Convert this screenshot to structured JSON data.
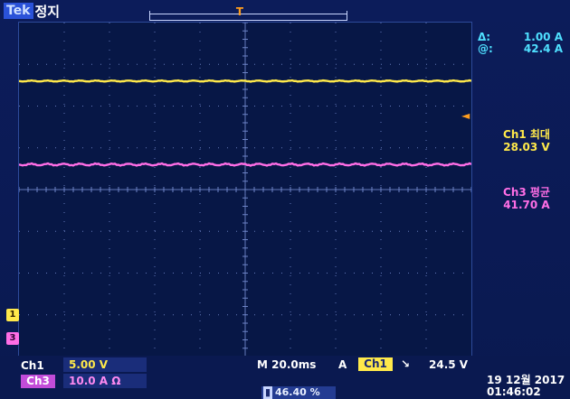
{
  "status": {
    "brand": "Tek",
    "state": "정지"
  },
  "trigger": {
    "marker_top": "T",
    "marker": "T",
    "arrow": "◄"
  },
  "cursor": {
    "delta_key": "Δ:",
    "delta_value": "1.00 A",
    "at_key": "@:",
    "at_value": "42.4 A"
  },
  "measurements": [
    {
      "label": "Ch1 최대",
      "value": "28.03 V"
    },
    {
      "label": "Ch3 평균",
      "value": "41.70 A"
    }
  ],
  "channels": {
    "ch1_marker": "1",
    "ch3_marker": "3",
    "ch1_label": "Ch1",
    "ch1_scale": "5.00 V",
    "ch3_label": "Ch3",
    "ch3_scale": "10.0 A Ω"
  },
  "horizontal": {
    "timebase": "M 20.0ms",
    "trigger_mode": "A",
    "trigger_channel": "Ch1",
    "trigger_slope": "↘",
    "trigger_level": "24.5 V"
  },
  "position": {
    "icon": "▮",
    "value": "46.40 %"
  },
  "datetime": {
    "date": "19 12월 2017",
    "time": "01:46:02"
  },
  "colors": {
    "background": "#0a1950",
    "grid": "#6d83c6",
    "ch1": "#ffe94a",
    "ch3": "#ff6ee6",
    "trigger": "#ff8f1e",
    "readout": "#4fe0ff"
  },
  "traces": {
    "ch1_level_divisions": 2.6,
    "ch3_level_divisions": 0.6
  }
}
